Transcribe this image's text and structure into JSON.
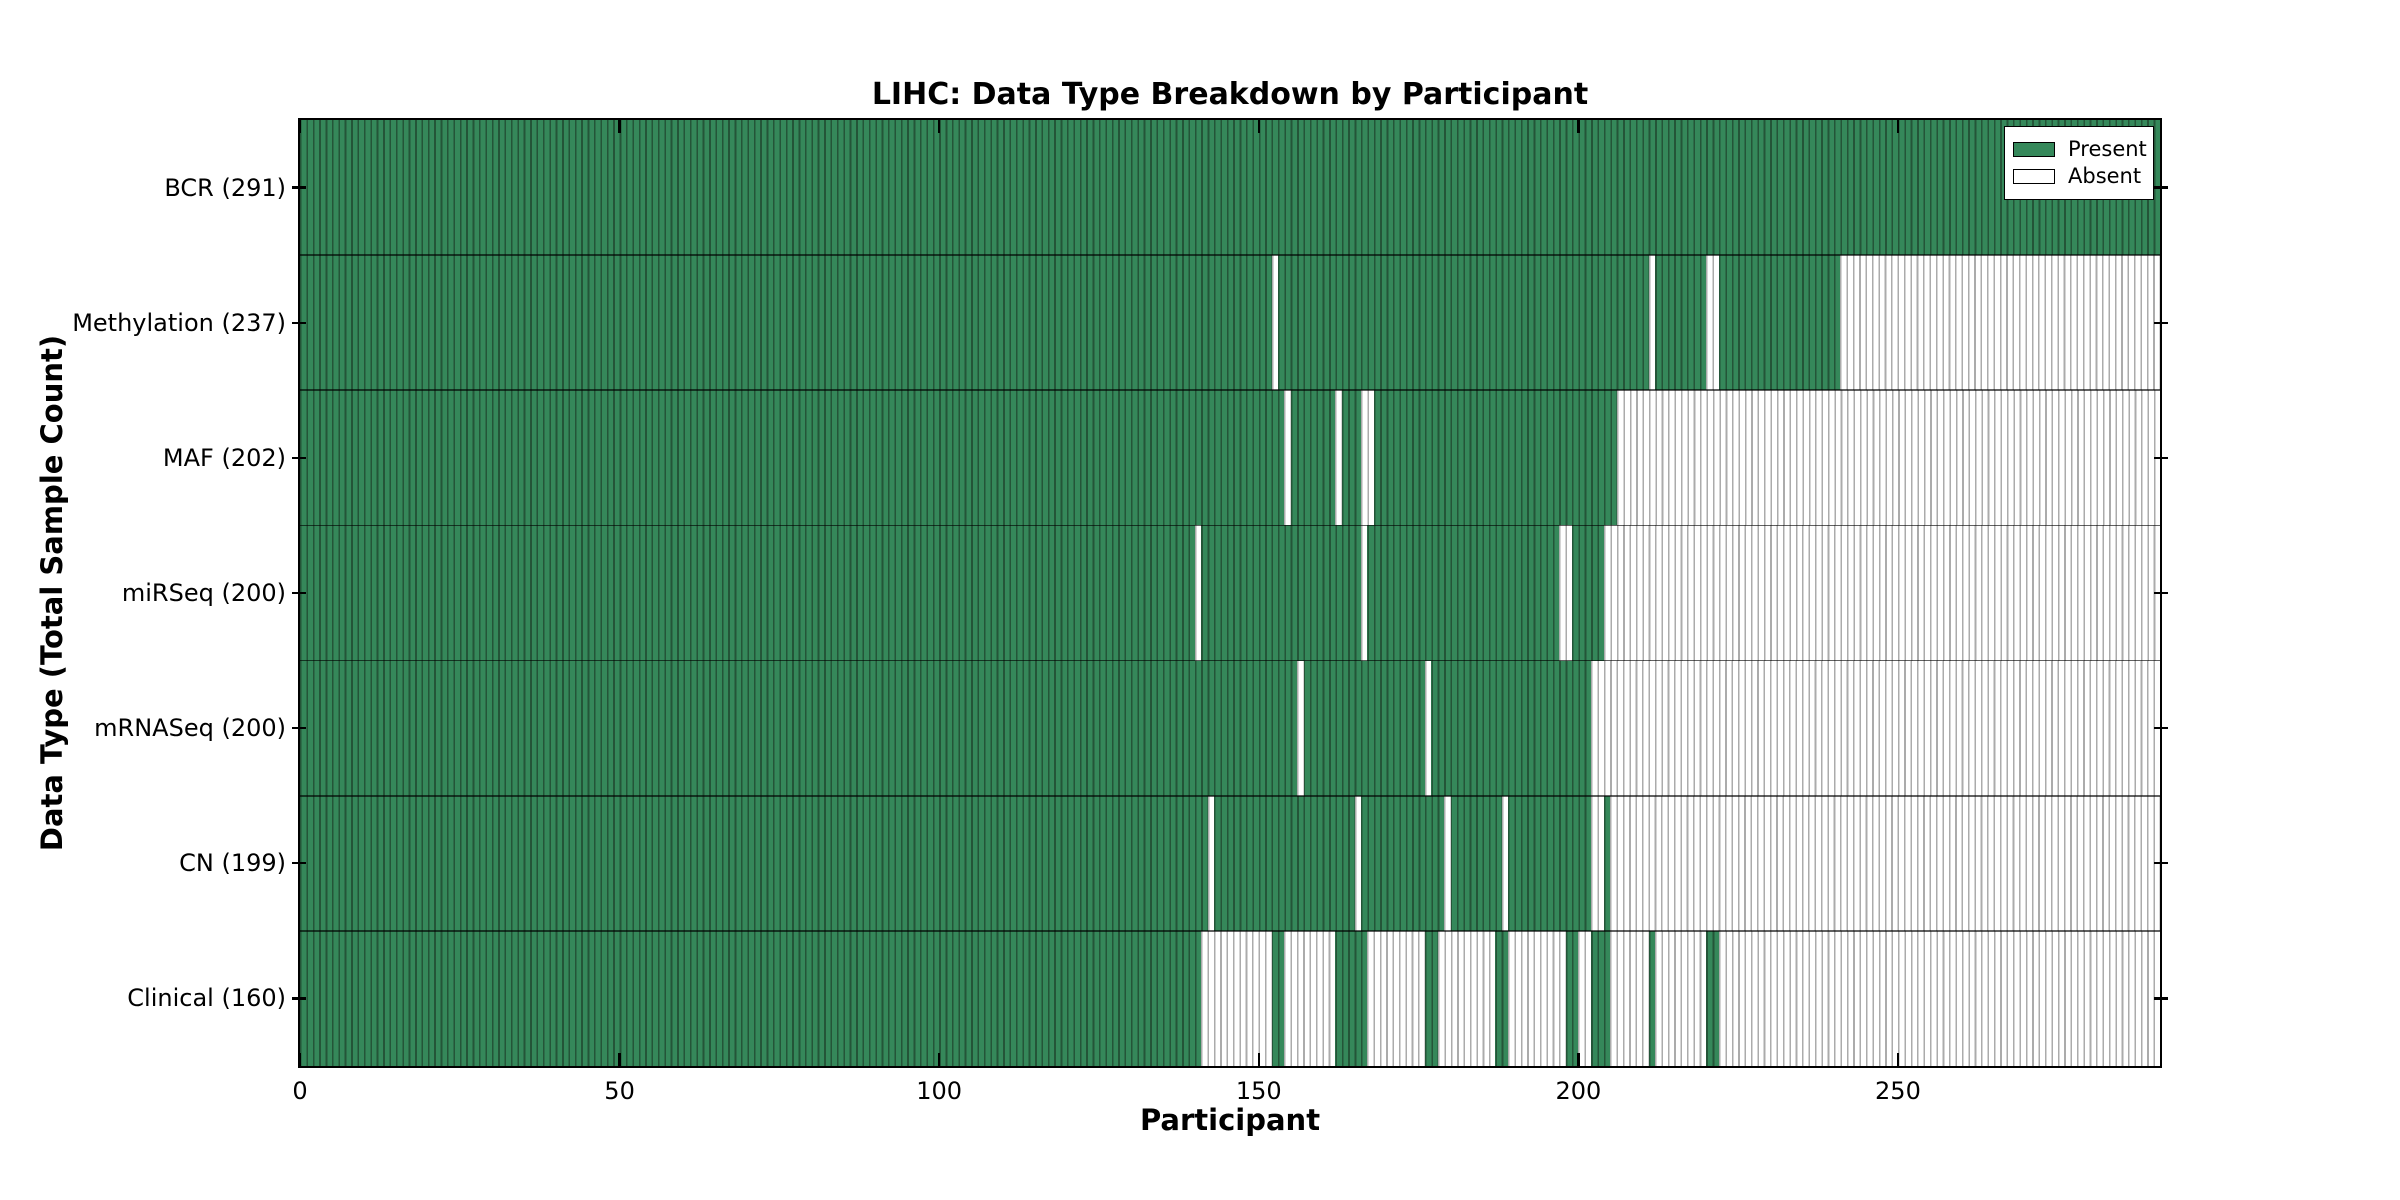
{
  "chart_data": {
    "type": "heatmap",
    "title": "LIHC: Data Type Breakdown by Participant",
    "xlabel": "Participant",
    "ylabel": "Data Type (Total Sample Count)",
    "n_participants": 291,
    "x_range": [
      0,
      291
    ],
    "x_ticks": [
      0,
      50,
      100,
      150,
      200,
      250
    ],
    "x_tick_labels": [
      "0",
      "50",
      "100",
      "150",
      "200",
      "250"
    ],
    "grid": false,
    "legend": {
      "position": "upper right",
      "entries": [
        {
          "label": "Present",
          "color": "#35885a"
        },
        {
          "label": "Absent",
          "color": "#ffffff"
        }
      ]
    },
    "colors": {
      "present": "#35885a",
      "present_edge": "#245538",
      "absent": "#ffffff",
      "absent_edge": "#ababab",
      "axis": "#000000"
    },
    "rows": [
      {
        "name": "BCR",
        "label": "BCR (291)",
        "count": 291,
        "absent_ranges": []
      },
      {
        "name": "Methylation",
        "label": "Methylation (237)",
        "count": 237,
        "absent_ranges": [
          [
            152,
            153
          ],
          [
            211,
            212
          ],
          [
            220,
            222
          ],
          [
            241,
            291
          ]
        ]
      },
      {
        "name": "MAF",
        "label": "MAF (202)",
        "count": 202,
        "absent_ranges": [
          [
            154,
            155
          ],
          [
            162,
            163
          ],
          [
            166,
            168
          ],
          [
            206,
            291
          ]
        ]
      },
      {
        "name": "miRSeq",
        "label": "miRSeq (200)",
        "count": 200,
        "absent_ranges": [
          [
            140,
            141
          ],
          [
            166,
            167
          ],
          [
            197,
            199
          ],
          [
            204,
            291
          ]
        ]
      },
      {
        "name": "mRNASeq",
        "label": "mRNASeq (200)",
        "count": 200,
        "absent_ranges": [
          [
            156,
            157
          ],
          [
            176,
            177
          ],
          [
            202,
            291
          ]
        ]
      },
      {
        "name": "CN",
        "label": "CN (199)",
        "count": 199,
        "absent_ranges": [
          [
            142,
            143
          ],
          [
            165,
            166
          ],
          [
            179,
            180
          ],
          [
            188,
            189
          ],
          [
            202,
            204
          ],
          [
            205,
            291
          ]
        ]
      },
      {
        "name": "Clinical",
        "label": "Clinical (160)",
        "count": 160,
        "absent_ranges": [
          [
            141,
            152
          ],
          [
            154,
            162
          ],
          [
            167,
            176
          ],
          [
            178,
            187
          ],
          [
            189,
            198
          ],
          [
            200,
            202
          ],
          [
            205,
            211
          ],
          [
            212,
            220
          ],
          [
            222,
            291
          ]
        ]
      }
    ]
  }
}
